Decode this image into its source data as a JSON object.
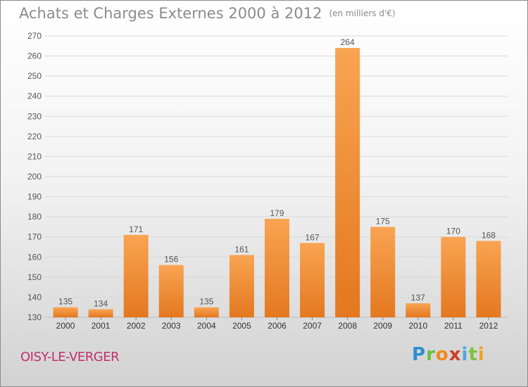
{
  "header": {
    "title": "Achats et Charges Externes 2000 à 2012",
    "unit": "(en milliers d'€)"
  },
  "footer": {
    "commune": "OISY-LE-VERGER",
    "logo_letters": [
      "P",
      "r",
      "o",
      "x",
      "i",
      "t",
      "i"
    ],
    "logo_colors": [
      "#2f8fd0",
      "#6bbf3a",
      "#f08a1c",
      "#d23c2a",
      "#4aa7e0",
      "#7cc23e",
      "#f0a41c"
    ]
  },
  "chart_data": {
    "type": "bar",
    "title": "Achats et Charges Externes 2000 à 2012",
    "categories": [
      "2000",
      "2001",
      "2002",
      "2003",
      "2004",
      "2005",
      "2006",
      "2007",
      "2008",
      "2009",
      "2010",
      "2011",
      "2012"
    ],
    "values": [
      135,
      134,
      171,
      156,
      135,
      161,
      179,
      167,
      264,
      175,
      137,
      170,
      168
    ],
    "ylim": [
      130,
      270
    ],
    "yticks": [
      130,
      140,
      150,
      160,
      170,
      180,
      190,
      200,
      210,
      220,
      230,
      240,
      250,
      260,
      270
    ],
    "grid": true,
    "colors": {
      "bar_light": "#f9a452",
      "bar_dark": "#e3781f",
      "grid": "#d9d9d9",
      "text": "#555555"
    }
  }
}
